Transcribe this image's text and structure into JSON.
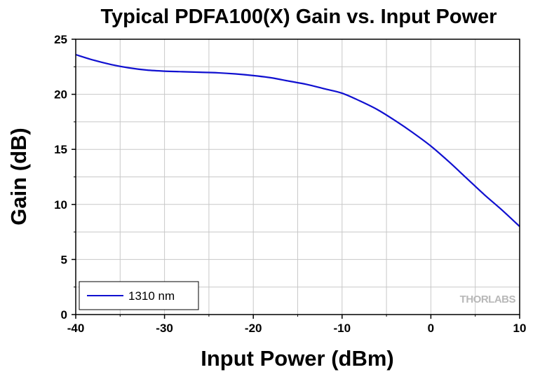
{
  "chart_data": {
    "type": "line",
    "title": "Typical PDFA100(X) Gain vs. Input Power",
    "xlabel": "Input Power (dBm)",
    "ylabel": "Gain (dB)",
    "xlim": [
      -40,
      10
    ],
    "ylim": [
      0,
      25
    ],
    "x_ticks": [
      -40,
      -30,
      -20,
      -10,
      0,
      10
    ],
    "y_ticks": [
      0,
      5,
      10,
      15,
      20,
      25
    ],
    "x_tick_labels": [
      "-40",
      "-30",
      "-20",
      "-10",
      "0",
      "10"
    ],
    "y_tick_labels": [
      "0",
      "5",
      "10",
      "15",
      "20",
      "25"
    ],
    "grid": true,
    "legend_position": "bottom-left",
    "series": [
      {
        "name": "1310 nm",
        "color": "#1010d0",
        "x": [
          -40,
          -38,
          -36,
          -34,
          -32,
          -30,
          -28,
          -26,
          -24,
          -22,
          -20,
          -18,
          -16,
          -14,
          -12,
          -10,
          -8,
          -6,
          -4,
          -2,
          0,
          2,
          4,
          6,
          8,
          10
        ],
        "y": [
          23.6,
          23.1,
          22.7,
          22.4,
          22.2,
          22.1,
          22.05,
          22.0,
          21.95,
          21.85,
          21.7,
          21.5,
          21.2,
          20.9,
          20.5,
          20.1,
          19.4,
          18.6,
          17.6,
          16.5,
          15.3,
          13.9,
          12.4,
          10.9,
          9.5,
          8.0
        ]
      }
    ]
  },
  "watermark_text": "THORLABS"
}
